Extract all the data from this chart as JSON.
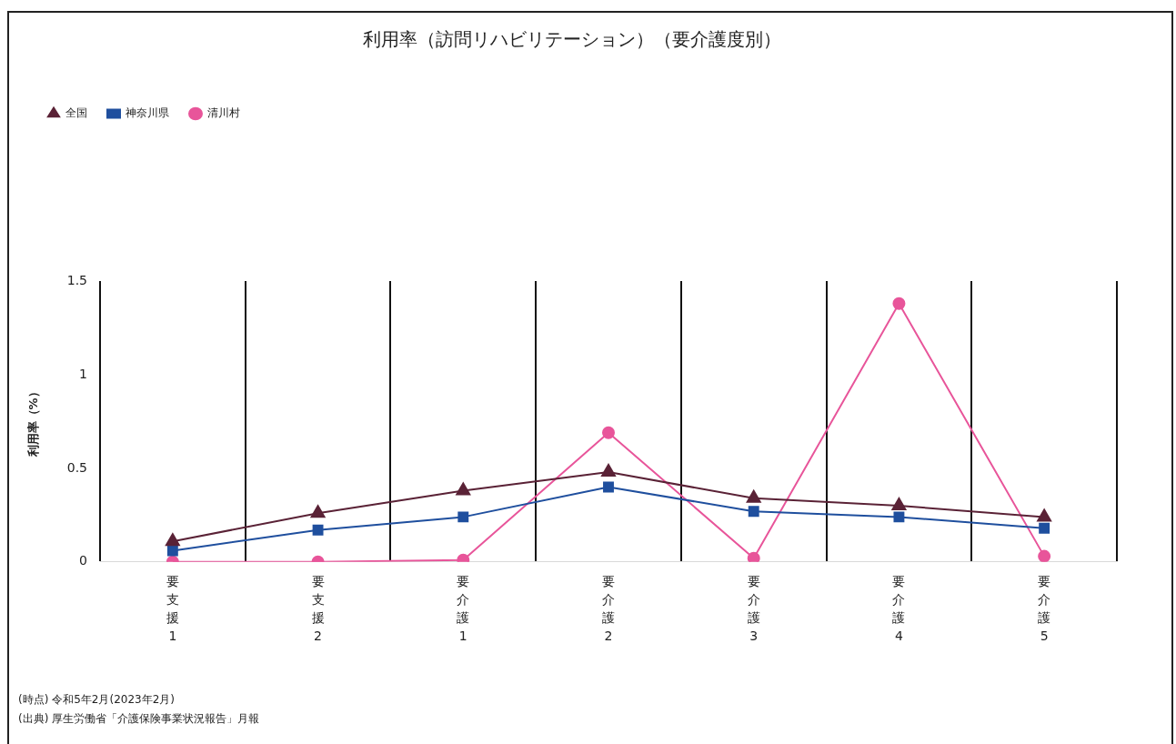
{
  "chart_data": {
    "type": "line",
    "title": "利用率（訪問リハビリテーション）（要介護度別）",
    "ylabel": "利用率（%）",
    "categories": [
      "要支援1",
      "要支援2",
      "要介護1",
      "要介護2",
      "要介護3",
      "要介護4",
      "要介護5"
    ],
    "series": [
      {
        "name": "全国",
        "color": "#5a2236",
        "marker": "triangle",
        "values": [
          0.11,
          0.26,
          0.38,
          0.48,
          0.34,
          0.3,
          0.24
        ]
      },
      {
        "name": "神奈川県",
        "color": "#1f4f9e",
        "marker": "square",
        "values": [
          0.06,
          0.17,
          0.24,
          0.4,
          0.27,
          0.24,
          0.18
        ]
      },
      {
        "name": "清川村",
        "color": "#e8559a",
        "marker": "circle",
        "values": [
          0,
          0,
          0.01,
          0.69,
          0.02,
          1.38,
          0.03
        ]
      }
    ],
    "ylim": [
      0,
      1.5
    ],
    "yticks": [
      0,
      0.5,
      1,
      1.5
    ],
    "grid": "x",
    "legend": "top left",
    "annotations": [
      "(時点) 令和5年2月(2023年2月)",
      "(出典) 厚生労働省「介護保険事業状況報告」月報"
    ]
  }
}
